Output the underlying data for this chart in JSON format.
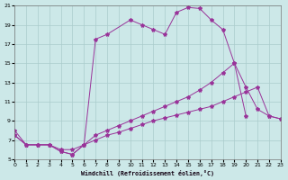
{
  "xlabel": "Windchill (Refroidissement éolien,°C)",
  "bg_color": "#cce8e8",
  "grid_color": "#aacccc",
  "line_color": "#993399",
  "xmin": 0,
  "xmax": 23,
  "ymin": 5,
  "ymax": 21,
  "yticks": [
    5,
    7,
    9,
    11,
    13,
    15,
    17,
    19,
    21
  ],
  "xticks": [
    0,
    1,
    2,
    3,
    4,
    5,
    6,
    7,
    8,
    9,
    10,
    11,
    12,
    13,
    14,
    15,
    16,
    17,
    18,
    19,
    20,
    21,
    22,
    23
  ],
  "line1_x": [
    0,
    1,
    2,
    3,
    4,
    5,
    6,
    7,
    8,
    10,
    11,
    12,
    13,
    14,
    15,
    16,
    17,
    18,
    19,
    20
  ],
  "line1_y": [
    8.0,
    6.5,
    6.5,
    6.5,
    5.8,
    5.5,
    6.5,
    17.5,
    18.0,
    19.5,
    19.0,
    18.5,
    18.0,
    20.3,
    20.8,
    20.7,
    19.5,
    18.5,
    15.0,
    9.5
  ],
  "line2_x": [
    0,
    1,
    2,
    3,
    4,
    5,
    6,
    7,
    8,
    9,
    10,
    11,
    12,
    13,
    14,
    15,
    16,
    17,
    18,
    19,
    20,
    21,
    22,
    23
  ],
  "line2_y": [
    7.5,
    6.5,
    6.5,
    6.5,
    6.0,
    6.0,
    6.5,
    7.5,
    8.0,
    8.5,
    9.0,
    9.5,
    10.0,
    10.5,
    11.0,
    11.5,
    12.2,
    13.0,
    14.0,
    15.0,
    12.5,
    10.2,
    9.5,
    9.2
  ],
  "line3_x": [
    0,
    1,
    2,
    3,
    4,
    5,
    6,
    7,
    8,
    9,
    10,
    11,
    12,
    13,
    14,
    15,
    16,
    17,
    18,
    19,
    20,
    21,
    22,
    23
  ],
  "line3_y": [
    7.5,
    6.5,
    6.5,
    6.5,
    5.8,
    5.5,
    6.5,
    7.0,
    7.5,
    7.8,
    8.2,
    8.6,
    9.0,
    9.3,
    9.6,
    9.9,
    10.2,
    10.5,
    11.0,
    11.5,
    12.0,
    12.5,
    9.5,
    9.2
  ]
}
